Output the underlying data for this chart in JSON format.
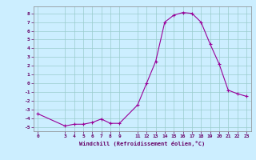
{
  "x": [
    0,
    3,
    4,
    5,
    6,
    7,
    8,
    9,
    11,
    12,
    13,
    14,
    15,
    16,
    17,
    18,
    19,
    20,
    21,
    22,
    23
  ],
  "y": [
    -3.5,
    -4.9,
    -4.7,
    -4.7,
    -4.5,
    -4.1,
    -4.6,
    -4.6,
    -2.5,
    0.0,
    2.5,
    7.0,
    7.8,
    8.1,
    8.0,
    7.0,
    4.5,
    2.2,
    -0.8,
    -1.2,
    -1.5
  ],
  "line_color": "#990099",
  "marker": "+",
  "bg_color": "#cceeff",
  "grid_color": "#99cccc",
  "xlabel": "Windchill (Refroidissement éolien,°C)",
  "yticks": [
    -5,
    -4,
    -3,
    -2,
    -1,
    0,
    1,
    2,
    3,
    4,
    5,
    6,
    7,
    8
  ],
  "xticks": [
    0,
    3,
    4,
    5,
    6,
    7,
    8,
    9,
    11,
    12,
    13,
    14,
    15,
    16,
    17,
    18,
    19,
    20,
    21,
    22,
    23
  ],
  "ylim": [
    -5.5,
    8.8
  ],
  "xlim": [
    -0.5,
    23.5
  ],
  "axis_color": "#660066",
  "tick_color": "#660066",
  "label_color": "#660066",
  "spine_color": "#888888"
}
